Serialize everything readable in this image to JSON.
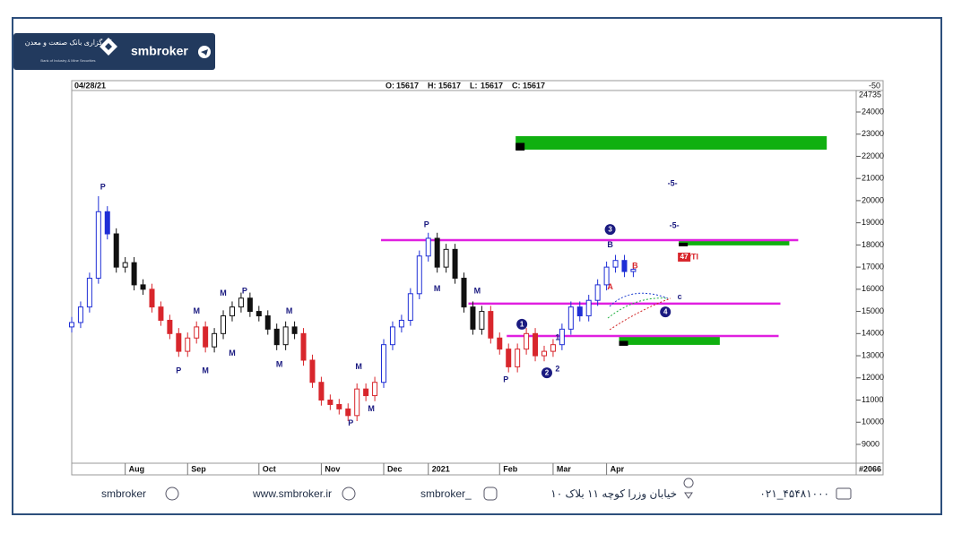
{
  "logo": {
    "persian_name": "کارگزاری بانک صنعت و معدن",
    "english_name": "Bank of Industry & Mine Securities",
    "brand": "smbroker"
  },
  "header": {
    "date": "04/28/21",
    "ohlc": [
      {
        "label": "O:",
        "value": 15617
      },
      {
        "label": "H:",
        "value": 15617
      },
      {
        "label": "L:",
        "value": 15617
      },
      {
        "label": "C:",
        "value": 15617
      }
    ],
    "right_label": "-50"
  },
  "chart_data": {
    "type": "candlestick",
    "bar_count_label": "#2066",
    "y_top_label": "24735",
    "xlim": [
      0,
      88
    ],
    "ylim": [
      8150,
      24970
    ],
    "yticks": [
      9000,
      10000,
      11000,
      12000,
      13000,
      14000,
      15000,
      16000,
      17000,
      18000,
      19000,
      20000,
      21000,
      22000,
      23000,
      24000
    ],
    "xticks": [
      {
        "value": 6,
        "label": "Aug"
      },
      {
        "value": 13,
        "label": "Sep"
      },
      {
        "value": 21,
        "label": "Oct"
      },
      {
        "value": 28,
        "label": "Nov"
      },
      {
        "value": 35,
        "label": "Dec"
      },
      {
        "value": 40,
        "label": "2021"
      },
      {
        "value": 48,
        "label": "Feb"
      },
      {
        "value": 54,
        "label": "Mar"
      },
      {
        "value": 60,
        "label": "Apr"
      }
    ],
    "open": [
      14300,
      14500,
      15200,
      16500,
      19500,
      18500,
      17000,
      17200,
      16200,
      16000,
      15200,
      14600,
      14000,
      13200,
      13800,
      14300,
      13400,
      14000,
      14800,
      15200,
      15600,
      15000,
      14800,
      14200,
      13500,
      14300,
      14000,
      12800,
      11800,
      11000,
      10800,
      10600,
      10300,
      11500,
      11200,
      11800,
      13500,
      14300,
      14600,
      15800,
      17500,
      18300,
      17000,
      17800,
      16500,
      15200,
      14200,
      15000,
      13800,
      13300,
      12500,
      13300,
      14000,
      13000,
      13200,
      13500,
      14200,
      15200,
      14800,
      15500,
      16200,
      17000,
      17300,
      16800
    ],
    "high": [
      14750,
      15450,
      16750,
      20200,
      19750,
      18750,
      17450,
      17450,
      16450,
      16250,
      15450,
      14850,
      14250,
      14050,
      14550,
      14550,
      14250,
      15050,
      15450,
      15850,
      15850,
      15250,
      15050,
      14450,
      14550,
      14550,
      14250,
      13050,
      12050,
      11250,
      11050,
      10850,
      11750,
      11750,
      12050,
      13750,
      14550,
      14850,
      16050,
      17750,
      18550,
      18550,
      18050,
      18050,
      16750,
      15450,
      15250,
      15250,
      14050,
      13550,
      13550,
      14250,
      14250,
      13450,
      13750,
      14450,
      15450,
      15450,
      15750,
      16450,
      17250,
      17550,
      17550,
      17150
    ],
    "low": [
      14050,
      14250,
      14950,
      16250,
      18250,
      16750,
      16750,
      15950,
      15750,
      14950,
      14350,
      13750,
      12950,
      12950,
      13550,
      13150,
      13150,
      13750,
      14550,
      14950,
      14750,
      14550,
      13950,
      13250,
      13250,
      13750,
      12550,
      11550,
      10750,
      10550,
      10350,
      10050,
      10050,
      10950,
      10950,
      11550,
      13250,
      14050,
      14350,
      15550,
      17250,
      16750,
      16750,
      16250,
      14950,
      13950,
      13950,
      13550,
      13050,
      12250,
      12250,
      13050,
      12750,
      12750,
      12950,
      13250,
      13950,
      14550,
      14550,
      15250,
      15950,
      16750,
      16550,
      16550
    ],
    "close": [
      14500,
      15200,
      16500,
      19500,
      18500,
      17000,
      17200,
      16200,
      16000,
      15200,
      14600,
      14000,
      13200,
      13800,
      14300,
      13400,
      14000,
      14800,
      15200,
      15600,
      15000,
      14800,
      14200,
      13500,
      14300,
      14000,
      12800,
      11800,
      11000,
      10800,
      10600,
      10300,
      11500,
      11200,
      11800,
      13500,
      14300,
      14600,
      15800,
      17500,
      18300,
      17000,
      17800,
      16500,
      15200,
      14200,
      15000,
      13800,
      13300,
      12500,
      13300,
      14000,
      13000,
      13200,
      13500,
      14200,
      15200,
      14800,
      15500,
      16200,
      17000,
      17300,
      16800,
      16900
    ],
    "colors": [
      "#1f2fd6",
      "#1f2fd6",
      "#1f2fd6",
      "#1f2fd6",
      "#1f2fd6",
      "#111111",
      "#111111",
      "#111111",
      "#111111",
      "#d8262c",
      "#d8262c",
      "#d8262c",
      "#d8262c",
      "#d8262c",
      "#d8262c",
      "#d8262c",
      "#111111",
      "#111111",
      "#111111",
      "#111111",
      "#111111",
      "#111111",
      "#111111",
      "#111111",
      "#111111",
      "#111111",
      "#d8262c",
      "#d8262c",
      "#d8262c",
      "#d8262c",
      "#d8262c",
      "#d8262c",
      "#d8262c",
      "#d8262c",
      "#d8262c",
      "#1f2fd6",
      "#1f2fd6",
      "#1f2fd6",
      "#1f2fd6",
      "#1f2fd6",
      "#1f2fd6",
      "#111111",
      "#111111",
      "#111111",
      "#111111",
      "#111111",
      "#111111",
      "#d8262c",
      "#d8262c",
      "#d8262c",
      "#d8262c",
      "#d8262c",
      "#d8262c",
      "#d8262c",
      "#d8262c",
      "#1f2fd6",
      "#1f2fd6",
      "#1f2fd6",
      "#1f2fd6",
      "#1f2fd6",
      "#1f2fd6",
      "#1f2fd6",
      "#1f2fd6",
      "#1f2fd6"
    ],
    "hlines": [
      {
        "value": 18220,
        "from": 34.7,
        "to": 81.5,
        "color": "#e020e0"
      },
      {
        "value": 15350,
        "from": 44.5,
        "to": 79.5,
        "color": "#e020e0"
      },
      {
        "value": 13890,
        "from": 48.8,
        "to": 79.3,
        "color": "#e020e0"
      }
    ],
    "zones": [
      {
        "top": 22909,
        "bottom": 22300,
        "from": 49.8,
        "to": 84.7,
        "color": "#10b010"
      },
      {
        "top": 18220,
        "bottom": 17980,
        "from": 68.1,
        "to": 80.5,
        "color": "#10b010"
      },
      {
        "top": 13850,
        "bottom": 13490,
        "from": 61.4,
        "to": 72.7,
        "color": "#10b010"
      }
    ],
    "markers": [
      {
        "label": "P",
        "x": 3.5,
        "y": 20600,
        "color": "#1a1a80"
      },
      {
        "label": "P",
        "x": 12,
        "y": 12300,
        "color": "#1a1a80"
      },
      {
        "label": "M",
        "x": 14,
        "y": 15000,
        "color": "#1a1a80"
      },
      {
        "label": "M",
        "x": 15,
        "y": 12300,
        "color": "#1a1a80"
      },
      {
        "label": "M",
        "x": 17,
        "y": 15800,
        "color": "#1a1a80"
      },
      {
        "label": "M",
        "x": 18,
        "y": 13100,
        "color": "#1a1a80"
      },
      {
        "label": "P",
        "x": 19.4,
        "y": 15900,
        "color": "#1a1a80"
      },
      {
        "label": "M",
        "x": 23.3,
        "y": 12600,
        "color": "#1a1a80"
      },
      {
        "label": "M",
        "x": 24.4,
        "y": 15000,
        "color": "#1a1a80"
      },
      {
        "label": "P",
        "x": 31.3,
        "y": 9950,
        "color": "#1a1a80"
      },
      {
        "label": "M",
        "x": 32.2,
        "y": 12500,
        "color": "#1a1a80"
      },
      {
        "label": "M",
        "x": 33.6,
        "y": 10600,
        "color": "#1a1a80"
      },
      {
        "label": "P",
        "x": 39.8,
        "y": 18900,
        "color": "#1a1a80"
      },
      {
        "label": "M",
        "x": 41,
        "y": 16000,
        "color": "#1a1a80"
      },
      {
        "label": "M",
        "x": 45.5,
        "y": 15900,
        "color": "#1a1a80"
      },
      {
        "label": "P",
        "x": 48.7,
        "y": 11900,
        "color": "#1a1a80"
      },
      {
        "label": "1",
        "x": 54.5,
        "y": 13800,
        "color": "#1a1a80"
      },
      {
        "label": "2",
        "x": 54.5,
        "y": 12400,
        "color": "#1a1a80"
      },
      {
        "label": "A",
        "x": 60.4,
        "y": 16100,
        "color": "#d8262c"
      },
      {
        "label": "B",
        "x": 63.2,
        "y": 17050,
        "color": "#d8262c"
      },
      {
        "label": "B",
        "x": 60.4,
        "y": 18000,
        "color": "#1a1a80"
      },
      {
        "label": "c",
        "x": 68.2,
        "y": 15650,
        "color": "#1a1a80"
      },
      {
        "label": "-5-",
        "x": 67.4,
        "y": 20770,
        "color": "#1a1a80"
      },
      {
        "label": "-5-",
        "x": 67.6,
        "y": 18860,
        "color": "#1a1a80"
      },
      {
        "label": "PTI",
        "x": 69.6,
        "y": 17450,
        "color": "#d8262c"
      }
    ],
    "waves": [
      {
        "label": "3",
        "x": 60.4,
        "y": 18700
      },
      {
        "label": "1",
        "x": 50.5,
        "y": 14420
      },
      {
        "label": "2",
        "x": 53.3,
        "y": 12230
      },
      {
        "label": "4",
        "x": 66.6,
        "y": 14980
      }
    ],
    "badge": {
      "label": "47",
      "x": 68.1,
      "y": 17450
    }
  },
  "footer": {
    "telegram": "smbroker",
    "website": "www.smbroker.ir",
    "instagram": "smbroker_",
    "address": "خیابان وزرا کوچه ۱۱ بلاک ۱۰",
    "phone": "۰۲۱_۴۵۴۸۱۰۰۰"
  }
}
